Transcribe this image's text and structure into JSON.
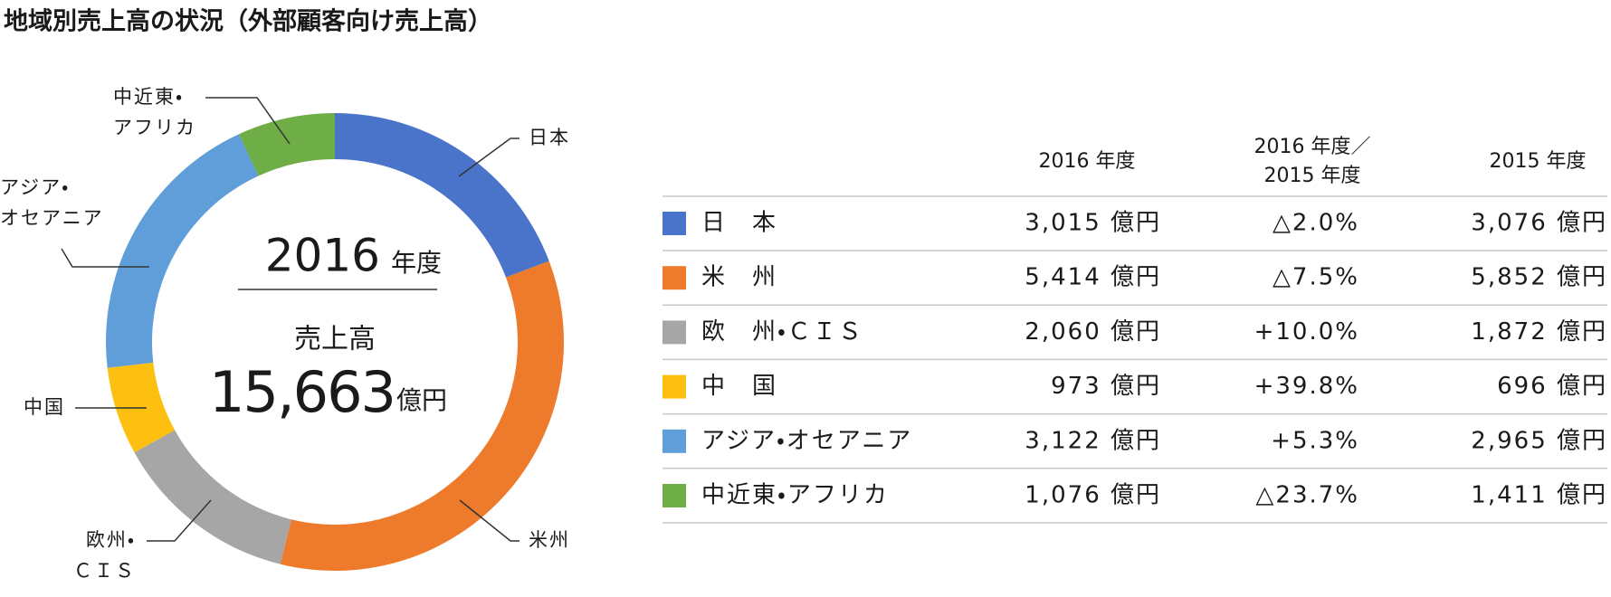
{
  "chart_data": {
    "type": "donut",
    "title": "地域別売上高の状況（外部顧客向け売上高）",
    "categories": [
      [
        "日本"
      ],
      [
        "米州"
      ],
      [
        "欧州・",
        "ＣＩＳ"
      ],
      [
        "中国"
      ],
      [
        "アジア・",
        "オセアニア"
      ],
      [
        "中近東・",
        "アフリカ"
      ]
    ],
    "values": [
      3015,
      5414,
      2060,
      973,
      3122,
      1076
    ],
    "colors": [
      "#4a74c9",
      "#ee7a2c",
      "#a6a6a6",
      "#fdc010",
      "#5f9ed8",
      "#6fad47"
    ],
    "center": {
      "year": "2016",
      "year_unit": "年度",
      "label": "売上高",
      "total": "15,663",
      "total_unit": "億円"
    }
  },
  "table": {
    "columns": [
      [
        "2016 年度"
      ],
      [
        "2016 年度／",
        "2015 年度"
      ],
      [
        "2015 年度"
      ]
    ],
    "rows": [
      {
        "name": "日　本",
        "cells": [
          "3,015 億円",
          "△2.0%",
          "3,076 億円"
        ]
      },
      {
        "name": "米　州",
        "cells": [
          "5,414 億円",
          "△7.5%",
          "5,852 億円"
        ]
      },
      {
        "name": "欧　州・ＣＩＳ",
        "cells": [
          "2,060 億円",
          "+10.0%",
          "1,872 億円"
        ]
      },
      {
        "name": "中　国",
        "cells": [
          "973 億円",
          "+39.8%",
          "696 億円"
        ]
      },
      {
        "name": "アジア・オセアニア",
        "cells": [
          "3,122 億円",
          "+5.3%",
          "2,965 億円"
        ]
      },
      {
        "name": "中近東・アフリカ",
        "cells": [
          "1,076 億円",
          "△23.7%",
          "1,411 億円"
        ]
      }
    ]
  }
}
